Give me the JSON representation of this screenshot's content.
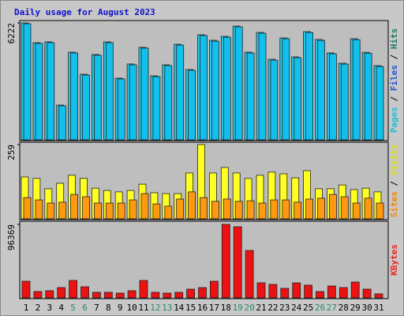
{
  "chart_data": [
    {
      "type": "bar",
      "title": "Daily usage for August 2023",
      "categories": [
        "1",
        "2",
        "3",
        "4",
        "5",
        "6",
        "7",
        "8",
        "9",
        "10",
        "11",
        "12",
        "13",
        "14",
        "15",
        "16",
        "17",
        "18",
        "19",
        "20",
        "21",
        "22",
        "23",
        "24",
        "25",
        "26",
        "27",
        "28",
        "29",
        "30",
        "31"
      ],
      "weekend_indices": [
        4,
        5,
        11,
        12,
        18,
        19,
        25,
        26
      ],
      "weekend_color": "#2a8a6a",
      "ylim": [
        0,
        6222
      ],
      "yticks": [
        6222
      ],
      "side_labels": [
        {
          "text": "Pages",
          "color": "#22bbdd"
        },
        {
          "text": "Files",
          "color": "#2255cc"
        },
        {
          "text": "Hits",
          "color": "#227766"
        }
      ],
      "separator": " / ",
      "series": [
        {
          "name": "Hits",
          "color": "#22ccee",
          "values": [
            6222,
            5171,
            5213,
            1850,
            4666,
            3489,
            4540,
            5213,
            3279,
            4036,
            4919,
            3405,
            3994,
            5087,
            3742,
            5591,
            5297,
            5507,
            6054,
            4666,
            5717,
            4288,
            5423,
            4414,
            5759,
            5339,
            4624,
            4078,
            5380,
            4660,
            3950
          ]
        },
        {
          "name": "Files",
          "color": "#11c0ec",
          "values": [
            6180,
            5130,
            5170,
            1810,
            4620,
            3450,
            4500,
            5170,
            3240,
            3990,
            4880,
            3360,
            3950,
            5040,
            3700,
            5550,
            5250,
            5460,
            6010,
            4620,
            5670,
            4240,
            5380,
            4370,
            5710,
            5290,
            4580,
            4030,
            5330,
            4610,
            3900
          ]
        }
      ]
    },
    {
      "type": "bar",
      "ylim": [
        0,
        259
      ],
      "yticks": [
        259
      ],
      "side_labels": [
        {
          "text": "Sites",
          "color": "#ee8800"
        },
        {
          "text": "Visits",
          "color": "#dddd22"
        }
      ],
      "separator": " / ",
      "series": [
        {
          "name": "Visits",
          "color": "#ffff22",
          "values": [
            146,
            141,
            105,
            124,
            152,
            141,
            107,
            99,
            94,
            99,
            121,
            91,
            88,
            88,
            160,
            259,
            160,
            179,
            160,
            141,
            152,
            163,
            157,
            143,
            168,
            105,
            105,
            118,
            102,
            107,
            94
          ]
        },
        {
          "name": "Sites",
          "color": "#ff9911",
          "values": [
            74,
            66,
            55,
            58,
            85,
            77,
            55,
            55,
            55,
            66,
            88,
            52,
            44,
            69,
            94,
            74,
            61,
            69,
            61,
            63,
            55,
            66,
            66,
            58,
            69,
            72,
            85,
            77,
            55,
            72,
            55
          ]
        }
      ]
    },
    {
      "type": "bar",
      "ylim": [
        0,
        96369
      ],
      "yticks": [
        96369
      ],
      "side_labels": [
        {
          "text": "KBytes",
          "color": "#ee2222"
        }
      ],
      "separator": " / ",
      "series": [
        {
          "name": "KBytes",
          "color": "#ee1111",
          "values": [
            21760,
            8290,
            9325,
            13470,
            22795,
            14505,
            7255,
            7255,
            6220,
            9325,
            22795,
            7255,
            6220,
            7255,
            11400,
            13470,
            21760,
            96369,
            93260,
            62170,
            19690,
            17620,
            12435,
            19690,
            16580,
            8290,
            15545,
            13470,
            20725,
            11400,
            5180
          ]
        }
      ]
    }
  ]
}
